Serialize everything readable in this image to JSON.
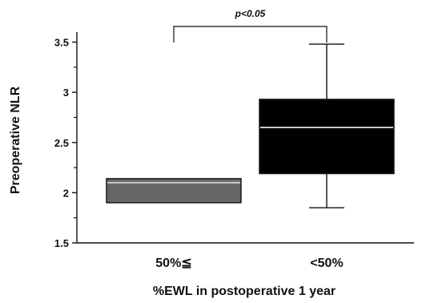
{
  "chart_data": {
    "type": "box",
    "categories": [
      "50%≦",
      "<50%"
    ],
    "boxes": [
      {
        "category": "50%≦",
        "min": 1.9,
        "q1": 1.9,
        "median": 2.1,
        "q3": 2.14,
        "max": 2.14,
        "fill": "#666666"
      },
      {
        "category": "<50%",
        "min": 1.85,
        "q1": 2.19,
        "median": 2.65,
        "q3": 2.93,
        "max": 3.48,
        "fill": "#000000"
      }
    ],
    "xlabel": "%EWL in postoperative 1 year",
    "ylabel": "Preoperative NLR",
    "ylim": [
      1.5,
      3.6
    ],
    "y_ticks": [
      1.5,
      2,
      2.5,
      3,
      3.5
    ],
    "y_tick_labels": [
      "1.5",
      "2",
      "2.5",
      "3",
      "3.5"
    ],
    "annotation": "p<0.05",
    "grid": false,
    "median_color": "#cccccc"
  }
}
